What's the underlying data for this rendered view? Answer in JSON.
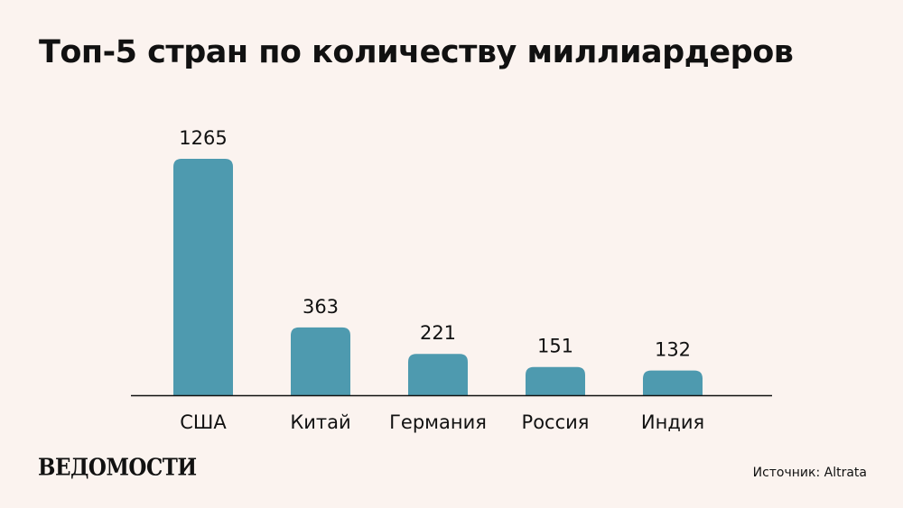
{
  "title": "Топ-5 стран по количеству миллиардеров",
  "logo_text": "ВЕДОМОСТИ",
  "source": "Источник: Altrata",
  "colors": {
    "background": "#fbf3ef",
    "bar": "#4e9aaf",
    "axis": "#111111",
    "text": "#111111"
  },
  "chart_data": {
    "type": "bar",
    "title": "Топ-5 стран по количеству миллиардеров",
    "categories": [
      "США",
      "Китай",
      "Германия",
      "Россия",
      "Индия"
    ],
    "values": [
      1265,
      363,
      221,
      151,
      132
    ],
    "data_labels": [
      "1265",
      "363",
      "221",
      "151",
      "132"
    ],
    "xlabel": "",
    "ylabel": "",
    "grid": false,
    "legend": "none"
  }
}
